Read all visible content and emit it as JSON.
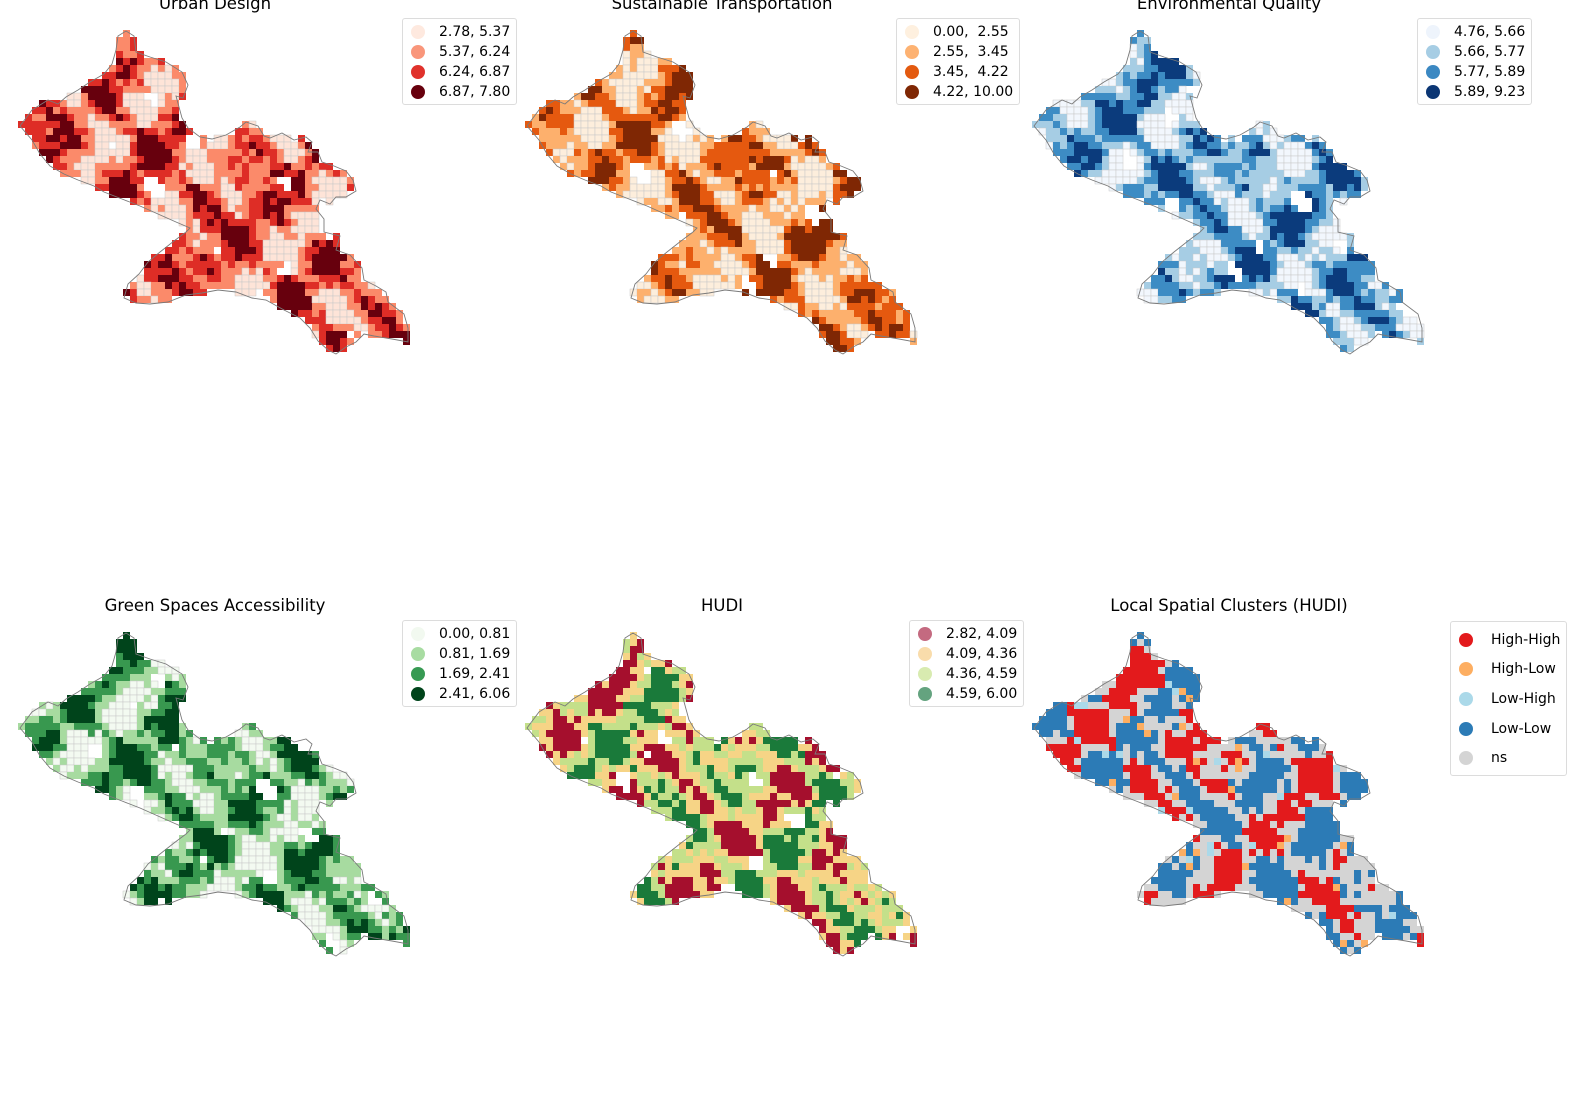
{
  "panels": [
    {
      "title": "Urban Design",
      "palette": [
        "#fee4d8",
        "#fb8a6a",
        "#de2d26",
        "#67000d"
      ],
      "legend": [
        {
          "label": "2.78, 5.37",
          "color": "#fee9df"
        },
        {
          "label": "5.37, 6.24",
          "color": "#f9967b"
        },
        {
          "label": "6.24, 6.87",
          "color": "#e0322c"
        },
        {
          "label": "6.87, 7.80",
          "color": "#67000d"
        }
      ]
    },
    {
      "title": "Sustainable Transportation",
      "palette": [
        "#fdeedc",
        "#fdb06d",
        "#e5590f",
        "#7f2704"
      ],
      "legend": [
        {
          "label": "0.00,  2.55",
          "color": "#fef0df"
        },
        {
          "label": "2.55,  3.45",
          "color": "#fdb272"
        },
        {
          "label": "3.45,  4.22",
          "color": "#e35a10"
        },
        {
          "label": "4.22, 10.00",
          "color": "#7f2704"
        }
      ]
    },
    {
      "title": "Environmental Quality",
      "palette": [
        "#f2f7fd",
        "#a6cde4",
        "#3d8cc4",
        "#0b3b7c"
      ],
      "legend": [
        {
          "label": "4.76, 5.66",
          "color": "#eef4fc"
        },
        {
          "label": "5.66, 5.77",
          "color": "#a6cde4"
        },
        {
          "label": "5.77, 5.89",
          "color": "#3b88c2"
        },
        {
          "label": "5.89, 9.23",
          "color": "#0b3674"
        }
      ]
    },
    {
      "title": "Green Spaces Accessibility",
      "palette": [
        "#f3faf1",
        "#a7dba0",
        "#38984f",
        "#00441b"
      ],
      "legend": [
        {
          "label": "0.00, 0.81",
          "color": "#f2f9f0"
        },
        {
          "label": "0.81, 1.69",
          "color": "#a8dca2"
        },
        {
          "label": "1.69, 2.41",
          "color": "#379a53"
        },
        {
          "label": "2.41, 6.06",
          "color": "#00441b"
        }
      ]
    },
    {
      "title": "HUDI",
      "palette": [
        "#a50f2d",
        "#f6d486",
        "#c4e08a",
        "#1a7a3a"
      ],
      "legend": [
        {
          "label": "2.82, 4.09",
          "color": "#c46a80"
        },
        {
          "label": "4.09, 4.36",
          "color": "#f9dcab"
        },
        {
          "label": "4.36, 4.59",
          "color": "#d8ebb0"
        },
        {
          "label": "4.59, 6.00",
          "color": "#64a37f"
        }
      ]
    },
    {
      "title": "Local Spatial Clusters (HUDI)",
      "palette": [
        "#e31a1c",
        "#fdae61",
        "#abd9e9",
        "#2c7bb6",
        "#d4d4d4"
      ],
      "legend": [
        {
          "label": "High-High",
          "color": "#e31a1c"
        },
        {
          "label": "High-Low",
          "color": "#fdae61"
        },
        {
          "label": "Low-High",
          "color": "#abd9e9"
        },
        {
          "label": "Low-Low",
          "color": "#2c7bb6"
        },
        {
          "label": "ns",
          "color": "#d4d4d4"
        }
      ]
    }
  ]
}
